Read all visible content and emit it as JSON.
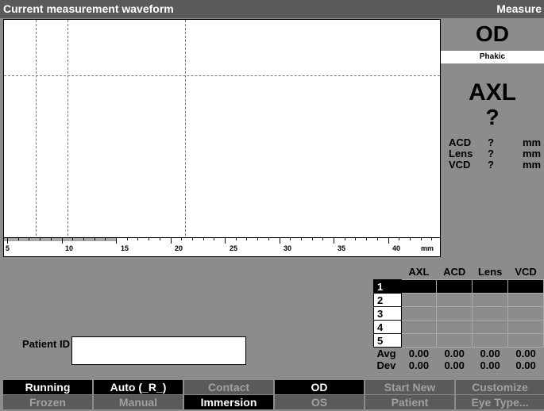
{
  "titlebar": {
    "title": "Current measurement waveform",
    "mode": "Measure"
  },
  "axis": {
    "labels": [
      "5",
      "10",
      "15",
      "20",
      "25",
      "30",
      "35",
      "40"
    ],
    "unit": "mm"
  },
  "side": {
    "eye": "OD",
    "lens_type": "Phakic",
    "axl_label": "AXL",
    "axl_value": "?",
    "metrics": [
      {
        "label": "ACD",
        "value": "?",
        "unit": "mm"
      },
      {
        "label": "Lens",
        "value": "?",
        "unit": "mm"
      },
      {
        "label": "VCD",
        "value": "?",
        "unit": "mm"
      }
    ]
  },
  "results": {
    "headers": [
      "AXL",
      "ACD",
      "Lens",
      "VCD"
    ],
    "rows": [
      "1",
      "2",
      "3",
      "4",
      "5"
    ],
    "avg_label": "Avg",
    "dev_label": "Dev",
    "avg": [
      "0.00",
      "0.00",
      "0.00",
      "0.00"
    ],
    "dev": [
      "0.00",
      "0.00",
      "0.00",
      "0.00"
    ]
  },
  "patient": {
    "label": "Patient ID",
    "value": ""
  },
  "softkeys": {
    "top": [
      "Running",
      "Auto (_R_)",
      "Contact",
      "OD",
      "Start New",
      "Customize"
    ],
    "bottom": [
      "Frozen",
      "Manual",
      "Immersion",
      "OS",
      "Patient",
      "Eye Type..."
    ]
  },
  "colors": {
    "background": "#8c8c8c",
    "bar": "#5a5a5a",
    "selected": "#000000"
  }
}
